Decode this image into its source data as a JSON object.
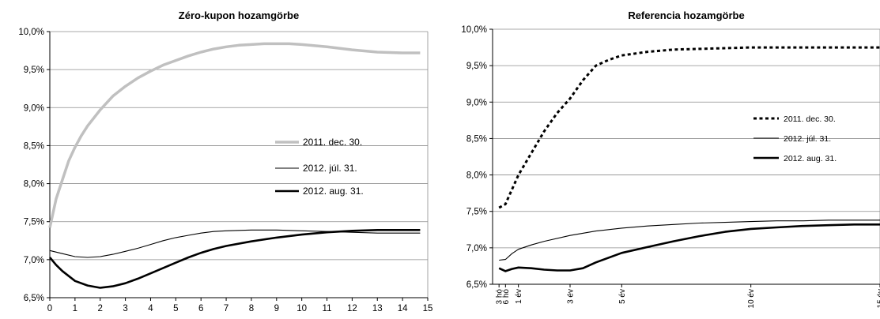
{
  "chart_data": [
    {
      "type": "line",
      "title": "Zéro-kupon hozamgörbe",
      "xlabel": "",
      "ylabel": "",
      "xlim": [
        0,
        15
      ],
      "ylim": [
        6.5,
        10.0
      ],
      "x_ticks": [
        "0",
        "1",
        "2",
        "3",
        "4",
        "5",
        "6",
        "7",
        "8",
        "9",
        "10",
        "11",
        "12",
        "13",
        "14",
        "15"
      ],
      "y_ticks": [
        "6,5%",
        "7,0%",
        "7,5%",
        "8,0%",
        "8,5%",
        "9,0%",
        "9,5%",
        "10,0%"
      ],
      "grid": "horizontal",
      "legend_position": "right-middle",
      "series": [
        {
          "name": "2011. dec. 30.",
          "color": "#c0c0c0",
          "style": "thick-solid",
          "x": [
            0,
            0.25,
            0.5,
            0.75,
            1,
            1.25,
            1.5,
            2,
            2.5,
            3,
            3.5,
            4,
            4.5,
            5,
            5.5,
            6,
            6.5,
            7,
            7.5,
            8,
            8.5,
            9,
            9.5,
            10,
            11,
            12,
            13,
            14,
            14.7
          ],
          "values": [
            7.42,
            7.8,
            8.05,
            8.3,
            8.48,
            8.63,
            8.76,
            8.97,
            9.15,
            9.28,
            9.39,
            9.48,
            9.56,
            9.62,
            9.68,
            9.73,
            9.77,
            9.8,
            9.82,
            9.83,
            9.84,
            9.84,
            9.84,
            9.83,
            9.8,
            9.76,
            9.73,
            9.72,
            9.72
          ]
        },
        {
          "name": "2012. júl. 31.",
          "color": "#000000",
          "style": "thin-solid",
          "x": [
            0,
            0.5,
            1,
            1.5,
            2,
            2.5,
            3,
            3.5,
            4,
            4.5,
            5,
            5.5,
            6,
            6.5,
            7,
            8,
            9,
            10,
            11,
            12,
            13,
            14,
            14.7
          ],
          "values": [
            7.12,
            7.08,
            7.04,
            7.03,
            7.04,
            7.07,
            7.11,
            7.15,
            7.2,
            7.25,
            7.29,
            7.32,
            7.35,
            7.37,
            7.38,
            7.39,
            7.39,
            7.38,
            7.37,
            7.36,
            7.35,
            7.35,
            7.35
          ]
        },
        {
          "name": "2012. aug. 31.",
          "color": "#000000",
          "style": "thick-solid",
          "x": [
            0,
            0.25,
            0.5,
            1,
            1.5,
            2,
            2.5,
            3,
            3.5,
            4,
            4.5,
            5,
            5.5,
            6,
            6.5,
            7,
            8,
            9,
            10,
            11,
            12,
            13,
            14,
            14.7
          ],
          "values": [
            7.03,
            6.93,
            6.85,
            6.72,
            6.66,
            6.63,
            6.65,
            6.69,
            6.75,
            6.82,
            6.89,
            6.96,
            7.03,
            7.09,
            7.14,
            7.18,
            7.24,
            7.29,
            7.33,
            7.36,
            7.38,
            7.39,
            7.39,
            7.39
          ]
        }
      ]
    },
    {
      "type": "line",
      "title": "Referencia hozamgörbe",
      "xlabel": "",
      "ylabel": "",
      "xlim": [
        0,
        15
      ],
      "ylim": [
        6.5,
        10.0
      ],
      "x_tick_positions": [
        0.25,
        0.5,
        1,
        3,
        5,
        10,
        15
      ],
      "x_ticks": [
        "3 hó",
        "6 hó",
        "1 év",
        "3 év",
        "5 év",
        "10 év",
        "15 év"
      ],
      "y_ticks": [
        "6,5%",
        "7,0%",
        "7,5%",
        "8,0%",
        "8,5%",
        "9,0%",
        "9,5%",
        "10,0%"
      ],
      "grid": "horizontal",
      "legend_position": "right-middle",
      "series": [
        {
          "name": "2011. dec. 30.",
          "color": "#000000",
          "style": "thick-dotted",
          "x": [
            0.25,
            0.5,
            0.75,
            1,
            1.5,
            2,
            2.5,
            3,
            3.5,
            4,
            4.5,
            5,
            6,
            7,
            8,
            9,
            10,
            11,
            12,
            13,
            14,
            15
          ],
          "values": [
            7.55,
            7.6,
            7.8,
            8.0,
            8.3,
            8.6,
            8.85,
            9.05,
            9.3,
            9.5,
            9.58,
            9.64,
            9.69,
            9.72,
            9.73,
            9.74,
            9.75,
            9.75,
            9.75,
            9.75,
            9.75,
            9.75
          ]
        },
        {
          "name": "2012. júl. 31.",
          "color": "#000000",
          "style": "thin-solid",
          "x": [
            0.25,
            0.5,
            0.75,
            1,
            1.5,
            2,
            3,
            4,
            5,
            6,
            7,
            8,
            9,
            10,
            11,
            12,
            13,
            14,
            15
          ],
          "values": [
            6.83,
            6.84,
            6.92,
            6.98,
            7.04,
            7.09,
            7.17,
            7.23,
            7.27,
            7.3,
            7.32,
            7.34,
            7.35,
            7.36,
            7.37,
            7.37,
            7.38,
            7.38,
            7.38
          ]
        },
        {
          "name": "2012. aug. 31.",
          "color": "#000000",
          "style": "thick-solid",
          "x": [
            0.25,
            0.5,
            0.75,
            1,
            1.5,
            2,
            2.5,
            3,
            3.5,
            4,
            5,
            6,
            7,
            8,
            9,
            10,
            11,
            12,
            13,
            14,
            15
          ],
          "values": [
            6.72,
            6.68,
            6.71,
            6.73,
            6.72,
            6.7,
            6.69,
            6.69,
            6.72,
            6.8,
            6.93,
            7.01,
            7.09,
            7.16,
            7.22,
            7.26,
            7.28,
            7.3,
            7.31,
            7.32,
            7.32
          ]
        }
      ]
    }
  ]
}
